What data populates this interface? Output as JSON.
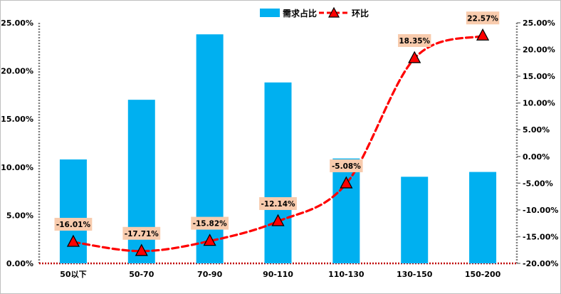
{
  "chart_data": {
    "type": "bar+line",
    "categories": [
      "50以下",
      "50-70",
      "70-90",
      "90-110",
      "110-130",
      "130-150",
      "150-200"
    ],
    "series": [
      {
        "name": "需求占比",
        "type": "bar",
        "axis": "left",
        "color": "#00B0F0",
        "values": [
          10.8,
          17.0,
          23.8,
          18.8,
          10.9,
          9.0,
          9.5
        ]
      },
      {
        "name": "环比",
        "type": "line",
        "axis": "right",
        "color": "#FF0000",
        "marker": "triangle",
        "values": [
          -16.01,
          -17.71,
          -15.82,
          -12.14,
          -5.08,
          18.35,
          22.57
        ],
        "labels": [
          "-16.01%",
          "-17.71%",
          "-15.82%",
          "-12.14%",
          "-5.08%",
          "18.35%",
          "22.57%"
        ]
      }
    ],
    "y_left": {
      "ylim": [
        0,
        25
      ],
      "ticks": [
        "0.00%",
        "5.00%",
        "10.00%",
        "15.00%",
        "20.00%",
        "25.00%"
      ]
    },
    "y_right": {
      "ylim": [
        -20,
        25
      ],
      "ticks": [
        "-20.00%",
        "-15.00%",
        "-10.00%",
        "-5.00%",
        "0.00%",
        "5.00%",
        "10.00%",
        "15.00%",
        "20.00%",
        "25.00%"
      ]
    },
    "legend": {
      "placement": "top-center"
    },
    "grid": false,
    "label_box_color": "#F8CBAD"
  }
}
